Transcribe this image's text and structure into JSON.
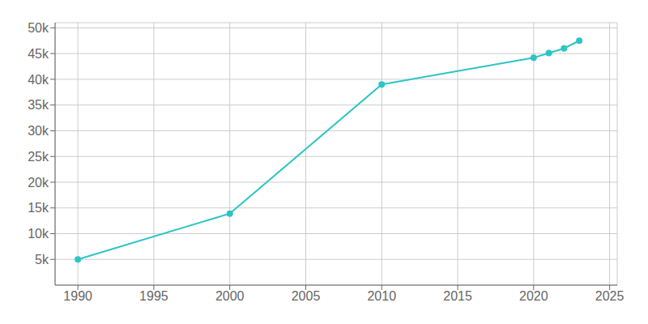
{
  "chart_data": {
    "type": "line",
    "x": [
      1990,
      2000,
      2010,
      2020,
      2021,
      2022,
      2023
    ],
    "values": [
      5000,
      13900,
      39000,
      44200,
      45100,
      46000,
      47500
    ],
    "color": "#2ec4c4",
    "marker": "circle",
    "xlim": [
      1988.5,
      2025.5
    ],
    "xticks": [
      1990,
      1995,
      2000,
      2005,
      2010,
      2015,
      2020,
      2025
    ],
    "ylim": [
      0,
      51000
    ],
    "yticks": [
      {
        "value": 5000,
        "label": "5k"
      },
      {
        "value": 10000,
        "label": "10k"
      },
      {
        "value": 15000,
        "label": "15k"
      },
      {
        "value": 20000,
        "label": "20k"
      },
      {
        "value": 25000,
        "label": "25k"
      },
      {
        "value": 30000,
        "label": "30k"
      },
      {
        "value": 35000,
        "label": "35k"
      },
      {
        "value": 40000,
        "label": "40k"
      },
      {
        "value": 45000,
        "label": "45k"
      },
      {
        "value": 50000,
        "label": "50k"
      }
    ],
    "grid": true
  }
}
